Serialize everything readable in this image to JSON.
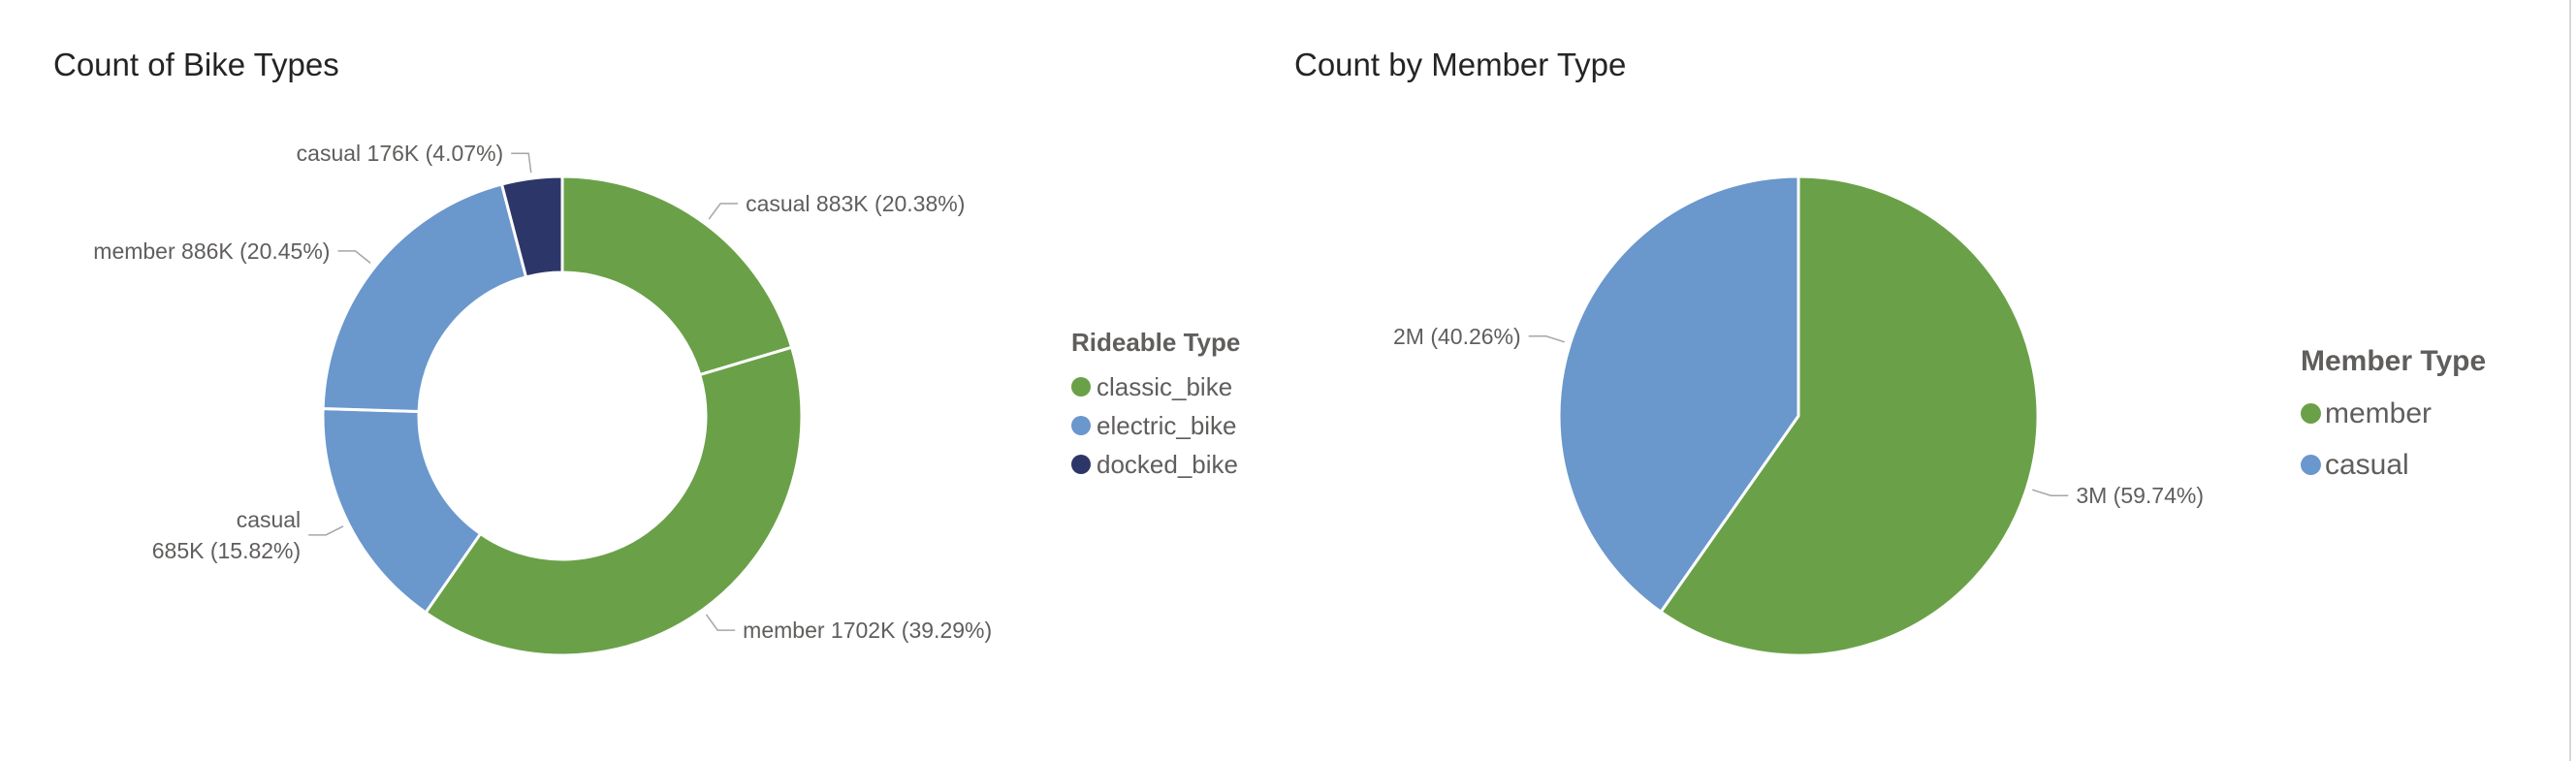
{
  "chart_data": [
    {
      "type": "donut",
      "title": "Count of Bike Types",
      "legend_title": "Rideable Type",
      "legend_position": "right",
      "legend": [
        {
          "name": "classic_bike",
          "color": "#6aa148"
        },
        {
          "name": "electric_bike",
          "color": "#6a97cc"
        },
        {
          "name": "docked_bike",
          "color": "#2d3668"
        }
      ],
      "slices": [
        {
          "rideable_type": "classic_bike",
          "member_type": "casual",
          "value_label": "883K",
          "value": 883,
          "percent": 20.38,
          "percent_label": "20.38%",
          "color": "#6aa148"
        },
        {
          "rideable_type": "classic_bike",
          "member_type": "member",
          "value_label": "1702K",
          "value": 1702,
          "percent": 39.29,
          "percent_label": "39.29%",
          "color": "#6aa148"
        },
        {
          "rideable_type": "electric_bike",
          "member_type": "casual",
          "value_label": "685K",
          "value": 685,
          "percent": 15.82,
          "percent_label": "15.82%",
          "color": "#6a97cc"
        },
        {
          "rideable_type": "electric_bike",
          "member_type": "member",
          "value_label": "886K",
          "value": 886,
          "percent": 20.45,
          "percent_label": "20.45%",
          "color": "#6a97cc"
        },
        {
          "rideable_type": "docked_bike",
          "member_type": "casual",
          "value_label": "176K",
          "value": 176,
          "percent": 4.07,
          "percent_label": "4.07%",
          "color": "#2d3668"
        }
      ]
    },
    {
      "type": "pie",
      "title": "Count by Member Type",
      "legend_title": "Member Type",
      "legend_position": "right",
      "legend": [
        {
          "name": "member",
          "color": "#6aa148"
        },
        {
          "name": "casual",
          "color": "#6a97cc"
        }
      ],
      "slices": [
        {
          "name": "member",
          "value_label": "3M",
          "percent": 59.74,
          "percent_label": "59.74%",
          "color": "#6aa148"
        },
        {
          "name": "casual",
          "value_label": "2M",
          "percent": 40.26,
          "percent_label": "40.26%",
          "color": "#6a97cc"
        }
      ]
    }
  ]
}
